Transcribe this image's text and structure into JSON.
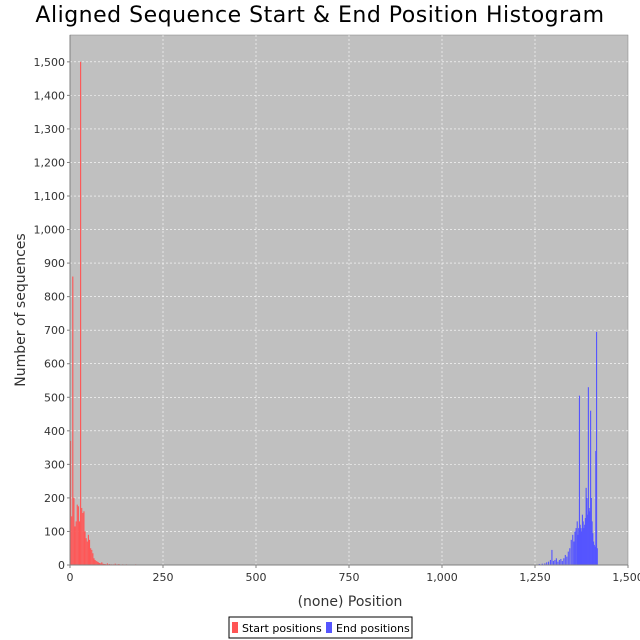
{
  "chart_data": {
    "type": "bar",
    "title": "Aligned Sequence Start & End Position Histogram",
    "xlabel": "(none) Position",
    "ylabel": "Number of sequences",
    "xlim": [
      0,
      1500
    ],
    "ylim": [
      0,
      1580
    ],
    "x_ticks": [
      "0",
      "250",
      "500",
      "750",
      "1,000",
      "1,250",
      "1,500"
    ],
    "x_tick_values": [
      0,
      250,
      500,
      750,
      1000,
      1250,
      1500
    ],
    "y_ticks": [
      "0",
      "100",
      "200",
      "300",
      "400",
      "500",
      "600",
      "700",
      "800",
      "900",
      "1,000",
      "1,100",
      "1,200",
      "1,300",
      "1,400",
      "1,500"
    ],
    "y_tick_values": [
      0,
      100,
      200,
      300,
      400,
      500,
      600,
      700,
      800,
      900,
      1000,
      1100,
      1200,
      1300,
      1400,
      1500
    ],
    "grid": true,
    "background_color": "#c0c0c0",
    "legend_position": "bottom",
    "series": [
      {
        "name": "Start positions",
        "color": "#ff5555",
        "bin_width": 3,
        "points": [
          [
            0,
            370
          ],
          [
            3,
            145
          ],
          [
            6,
            860
          ],
          [
            9,
            200
          ],
          [
            12,
            115
          ],
          [
            15,
            130
          ],
          [
            18,
            180
          ],
          [
            21,
            175
          ],
          [
            24,
            130
          ],
          [
            27,
            1500
          ],
          [
            30,
            170
          ],
          [
            33,
            155
          ],
          [
            36,
            160
          ],
          [
            39,
            100
          ],
          [
            42,
            80
          ],
          [
            45,
            70
          ],
          [
            48,
            90
          ],
          [
            51,
            75
          ],
          [
            54,
            50
          ],
          [
            57,
            45
          ],
          [
            60,
            35
          ],
          [
            63,
            20
          ],
          [
            66,
            15
          ],
          [
            69,
            12
          ],
          [
            72,
            10
          ],
          [
            75,
            8
          ],
          [
            78,
            6
          ],
          [
            81,
            5
          ],
          [
            84,
            8
          ],
          [
            87,
            4
          ],
          [
            90,
            3
          ],
          [
            93,
            3
          ],
          [
            96,
            2
          ],
          [
            99,
            5
          ],
          [
            102,
            2
          ],
          [
            105,
            3
          ],
          [
            110,
            2
          ],
          [
            115,
            2
          ],
          [
            120,
            4
          ],
          [
            125,
            2
          ],
          [
            130,
            3
          ],
          [
            140,
            2
          ],
          [
            150,
            2
          ],
          [
            160,
            1
          ],
          [
            175,
            2
          ],
          [
            190,
            1
          ],
          [
            205,
            1
          ]
        ]
      },
      {
        "name": "End positions",
        "color": "#5555ff",
        "bin_width": 3,
        "points": [
          [
            1260,
            3
          ],
          [
            1268,
            4
          ],
          [
            1275,
            5
          ],
          [
            1280,
            8
          ],
          [
            1285,
            10
          ],
          [
            1290,
            15
          ],
          [
            1294,
            45
          ],
          [
            1298,
            12
          ],
          [
            1302,
            15
          ],
          [
            1306,
            20
          ],
          [
            1310,
            10
          ],
          [
            1314,
            15
          ],
          [
            1318,
            18
          ],
          [
            1322,
            12
          ],
          [
            1326,
            20
          ],
          [
            1330,
            30
          ],
          [
            1334,
            25
          ],
          [
            1338,
            40
          ],
          [
            1342,
            50
          ],
          [
            1346,
            75
          ],
          [
            1350,
            90
          ],
          [
            1353,
            70
          ],
          [
            1356,
            100
          ],
          [
            1359,
            110
          ],
          [
            1362,
            130
          ],
          [
            1364,
            90
          ],
          [
            1366,
            110
          ],
          [
            1368,
            505
          ],
          [
            1370,
            120
          ],
          [
            1372,
            110
          ],
          [
            1374,
            100
          ],
          [
            1376,
            150
          ],
          [
            1378,
            130
          ],
          [
            1380,
            110
          ],
          [
            1382,
            120
          ],
          [
            1384,
            140
          ],
          [
            1386,
            230
          ],
          [
            1388,
            200
          ],
          [
            1390,
            150
          ],
          [
            1392,
            530
          ],
          [
            1394,
            170
          ],
          [
            1396,
            160
          ],
          [
            1398,
            460
          ],
          [
            1400,
            200
          ],
          [
            1402,
            130
          ],
          [
            1404,
            95
          ],
          [
            1406,
            70
          ],
          [
            1408,
            60
          ],
          [
            1410,
            55
          ],
          [
            1412,
            340
          ],
          [
            1414,
            695
          ],
          [
            1416,
            50
          ]
        ]
      }
    ]
  }
}
